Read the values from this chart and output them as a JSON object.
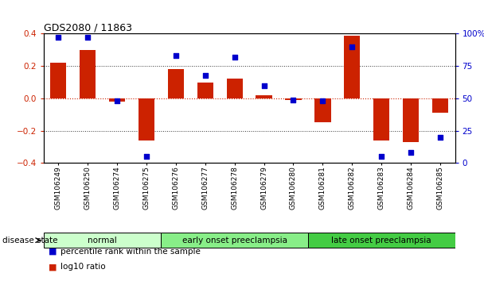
{
  "title": "GDS2080 / 11863",
  "samples": [
    "GSM106249",
    "GSM106250",
    "GSM106274",
    "GSM106275",
    "GSM106276",
    "GSM106277",
    "GSM106278",
    "GSM106279",
    "GSM106280",
    "GSM106281",
    "GSM106282",
    "GSM106283",
    "GSM106284",
    "GSM106285"
  ],
  "log10_ratio": [
    0.22,
    0.3,
    -0.02,
    -0.26,
    0.18,
    0.1,
    0.12,
    0.02,
    -0.01,
    -0.15,
    0.39,
    -0.26,
    -0.27,
    -0.09
  ],
  "percentile_rank": [
    97,
    97,
    48,
    5,
    83,
    68,
    82,
    60,
    49,
    48,
    90,
    5,
    8,
    20
  ],
  "groups": [
    {
      "label": "normal",
      "start": 0,
      "end": 4,
      "color": "#ccffcc"
    },
    {
      "label": "early onset preeclampsia",
      "start": 4,
      "end": 9,
      "color": "#88ee88"
    },
    {
      "label": "late onset preeclampsia",
      "start": 9,
      "end": 14,
      "color": "#44cc44"
    }
  ],
  "bar_color": "#cc2200",
  "scatter_color": "#0000cc",
  "zero_line_color": "#cc2200",
  "dotted_line_color": "#333333",
  "ylim_left": [
    -0.4,
    0.4
  ],
  "ylim_right": [
    0,
    100
  ],
  "yticks_left": [
    -0.4,
    -0.2,
    0.0,
    0.2,
    0.4
  ],
  "yticks_right": [
    0,
    25,
    50,
    75,
    100
  ],
  "background_color": "#ffffff",
  "label_log10": "log10 ratio",
  "label_percentile": "percentile rank within the sample",
  "disease_state_label": "disease state"
}
